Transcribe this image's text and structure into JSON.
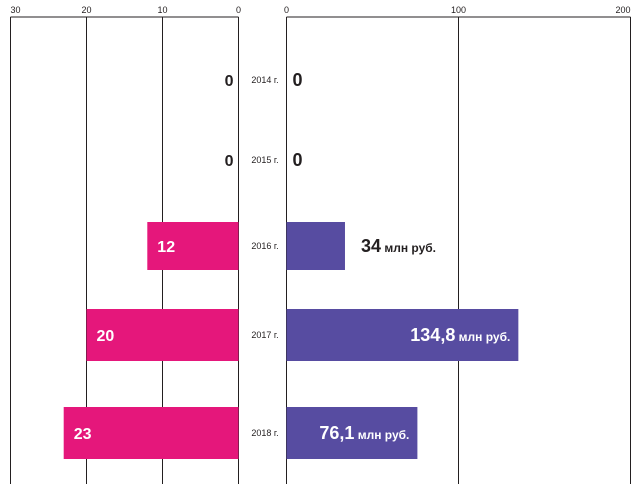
{
  "chart_data": [
    {
      "type": "bar",
      "orientation": "horizontal",
      "direction": "right-to-left",
      "categories": [
        "2014 г.",
        "2015 г.",
        "2016 г.",
        "2017 г.",
        "2018 г."
      ],
      "values": [
        0,
        0,
        12,
        20,
        23
      ],
      "value_labels": [
        "0",
        "0",
        "12",
        "20",
        "23"
      ],
      "xlim": [
        0,
        30
      ],
      "ticks": [
        "0",
        "10",
        "20",
        "30"
      ],
      "grid": true
    },
    {
      "type": "bar",
      "orientation": "horizontal",
      "direction": "left-to-right",
      "categories": [
        "2014 г.",
        "2015 г.",
        "2016 г.",
        "2017 г.",
        "2018 г."
      ],
      "values": [
        0,
        0,
        34,
        134.8,
        76.1
      ],
      "value_labels": [
        "0",
        "0",
        "34",
        "134,8",
        "76,1"
      ],
      "unit": "млн руб.",
      "xlim": [
        0,
        200
      ],
      "ticks": [
        "0",
        "100",
        "200"
      ],
      "grid": true
    }
  ],
  "colors": {
    "left_bar": "#e5177b",
    "right_bar": "#574ca1",
    "axis": "#231f20",
    "label_on_bar": "#ffffff",
    "label": "#231f20"
  }
}
